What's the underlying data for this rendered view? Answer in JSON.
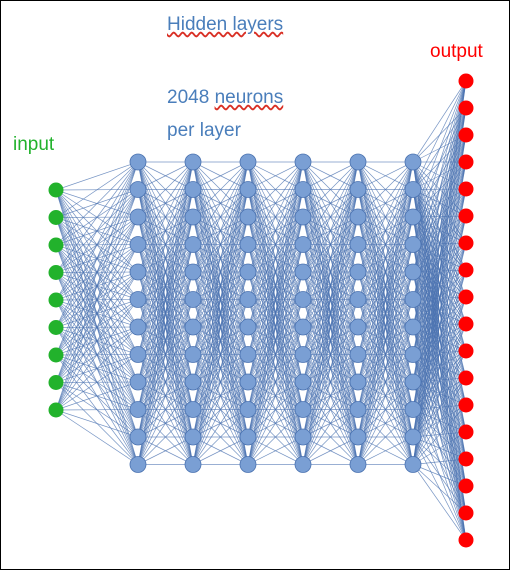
{
  "diagram": {
    "title": "Hidden layers",
    "neurons_number": "2048",
    "neurons_word": "neurons",
    "neurons_suffix": "per layer",
    "input_label": "input",
    "output_label": "output",
    "input_count": 9,
    "hidden_layer_count": 6,
    "hidden_neurons_drawn": 12,
    "output_count": 18
  },
  "colors": {
    "text_blue": "#4a7ebb",
    "input_green": "#22b22c",
    "output_red": "#ff0000",
    "hidden_node": "#7a9fd4",
    "edge_blue": "#4a72b0",
    "spellcheck_underline": "#d93025"
  }
}
